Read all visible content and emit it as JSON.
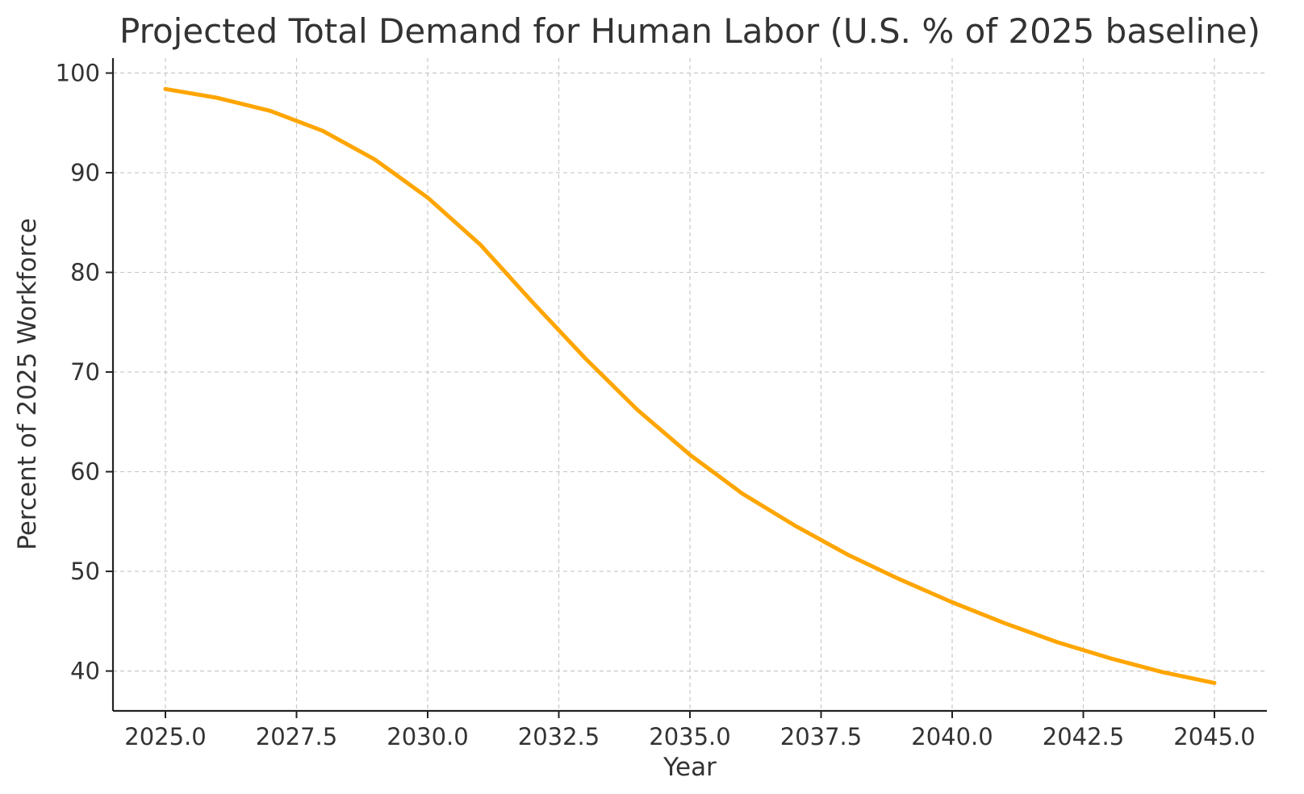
{
  "chart_data": {
    "type": "line",
    "title": "Projected Total Demand for Human Labor (U.S. % of 2025 baseline)",
    "xlabel": "Year",
    "ylabel": "Percent of 2025 Workforce",
    "xlim": [
      2024.0,
      2046.0
    ],
    "ylim": [
      36.0,
      101.5
    ],
    "x_ticks": [
      2025.0,
      2027.5,
      2030.0,
      2032.5,
      2035.0,
      2037.5,
      2040.0,
      2042.5,
      2045.0
    ],
    "x_tick_labels": [
      "2025.0",
      "2027.5",
      "2030.0",
      "2032.5",
      "2035.0",
      "2037.5",
      "2040.0",
      "2042.5",
      "2045.0"
    ],
    "y_ticks": [
      40,
      50,
      60,
      70,
      80,
      90,
      100
    ],
    "y_tick_labels": [
      "40",
      "50",
      "60",
      "70",
      "80",
      "90",
      "100"
    ],
    "grid": true,
    "grid_style": "dashed",
    "legend": "none",
    "colors": {
      "line": "#FFA500",
      "grid": "#c8c8c8",
      "axis": "#222222",
      "text": "#333333"
    },
    "x": [
      2025,
      2026,
      2027,
      2028,
      2029,
      2030,
      2031,
      2032,
      2033,
      2034,
      2035,
      2036,
      2037,
      2038,
      2039,
      2040,
      2041,
      2042,
      2043,
      2044,
      2045
    ],
    "series": [
      {
        "values": [
          98.4,
          97.5,
          96.2,
          94.2,
          91.3,
          87.5,
          82.8,
          77.0,
          71.4,
          66.2,
          61.7,
          57.8,
          54.6,
          51.7,
          49.2,
          46.9,
          44.8,
          42.9,
          41.3,
          39.9,
          38.8
        ]
      }
    ]
  }
}
